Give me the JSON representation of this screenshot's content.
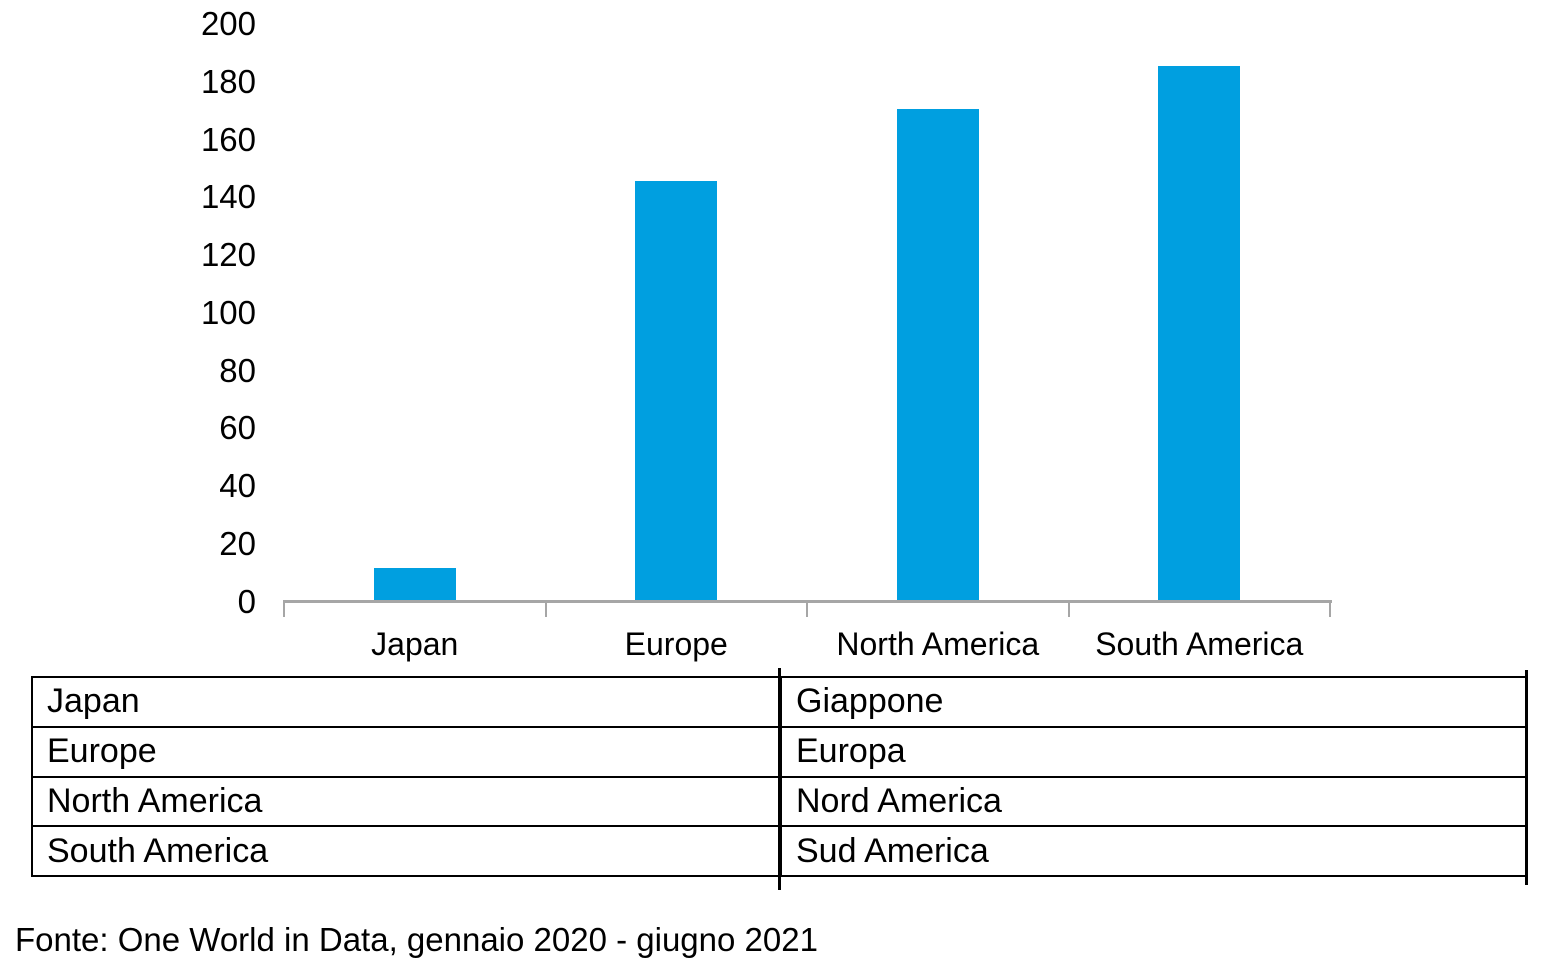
{
  "chart_data": {
    "type": "bar",
    "categories": [
      "Japan",
      "Europe",
      "North America",
      "South America"
    ],
    "values": [
      11,
      145,
      170,
      185
    ],
    "title": "",
    "xlabel": "",
    "ylabel": "",
    "ylim": [
      0,
      200
    ],
    "yticks": [
      0,
      20,
      40,
      60,
      80,
      100,
      120,
      140,
      160,
      180,
      200
    ],
    "grid": false,
    "legend": "none",
    "bar_color": "#009FE0",
    "axis_color": "#A6A6A6"
  },
  "table": {
    "rows": [
      {
        "en": "Japan",
        "it": "Giappone"
      },
      {
        "en": "Europe",
        "it": "Europa"
      },
      {
        "en": "North America",
        "it": "Nord America"
      },
      {
        "en": "South America",
        "it": "Sud America"
      }
    ]
  },
  "footer": {
    "text": "Fonte: One World in Data, gennaio 2020 - giugno 2021"
  }
}
